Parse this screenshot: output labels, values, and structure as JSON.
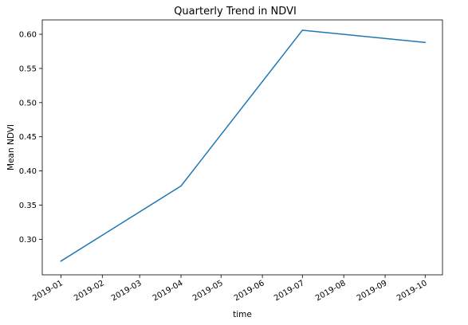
{
  "chart_data": {
    "type": "line",
    "title": "Quarterly Trend in NDVI",
    "xlabel": "time",
    "ylabel": "Mean NDVI",
    "x_tick_labels": [
      "2019-01",
      "2019-02",
      "2019-03",
      "2019-04",
      "2019-05",
      "2019-06",
      "2019-07",
      "2019-08",
      "2019-09",
      "2019-10"
    ],
    "y_ticks": [
      0.3,
      0.35,
      0.4,
      0.45,
      0.5,
      0.55,
      0.6
    ],
    "y_tick_labels": [
      "0.30",
      "0.35",
      "0.40",
      "0.45",
      "0.50",
      "0.55",
      "0.60"
    ],
    "ylim": [
      0.248,
      0.621
    ],
    "xlim": [
      "2018-12-18",
      "2019-10-14"
    ],
    "grid": false,
    "series": [
      {
        "x": [
          "2019-01-01",
          "2019-04-01",
          "2019-07-01",
          "2019-10-01"
        ],
        "values": [
          0.268,
          0.378,
          0.606,
          0.588
        ],
        "color": "#1f77b4"
      }
    ]
  }
}
